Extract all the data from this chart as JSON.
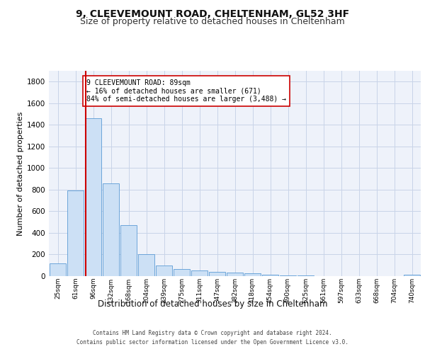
{
  "title_line1": "9, CLEEVEMOUNT ROAD, CHELTENHAM, GL52 3HF",
  "title_line2": "Size of property relative to detached houses in Cheltenham",
  "xlabel": "Distribution of detached houses by size in Cheltenham",
  "ylabel": "Number of detached properties",
  "footer_line1": "Contains HM Land Registry data © Crown copyright and database right 2024.",
  "footer_line2": "Contains public sector information licensed under the Open Government Licence v3.0.",
  "categories": [
    "25sqm",
    "61sqm",
    "96sqm",
    "132sqm",
    "168sqm",
    "204sqm",
    "239sqm",
    "275sqm",
    "311sqm",
    "347sqm",
    "382sqm",
    "418sqm",
    "454sqm",
    "490sqm",
    "525sqm",
    "561sqm",
    "597sqm",
    "633sqm",
    "668sqm",
    "704sqm",
    "740sqm"
  ],
  "values": [
    120,
    795,
    1460,
    860,
    470,
    200,
    100,
    65,
    55,
    40,
    30,
    25,
    15,
    8,
    5,
    3,
    2,
    1,
    1,
    0,
    15
  ],
  "bar_color": "#cce0f5",
  "bar_edge_color": "#5b9bd5",
  "property_line_x": 1.57,
  "property_line_color": "#cc0000",
  "annotation_text": "9 CLEEVEMOUNT ROAD: 89sqm\n← 16% of detached houses are smaller (671)\n84% of semi-detached houses are larger (3,488) →",
  "annotation_box_color": "#ffffff",
  "annotation_box_edge": "#cc0000",
  "ylim": [
    0,
    1900
  ],
  "yticks": [
    0,
    200,
    400,
    600,
    800,
    1000,
    1200,
    1400,
    1600,
    1800
  ],
  "grid_color": "#c8d4e8",
  "bg_color": "#eef2fa",
  "title1_fontsize": 10,
  "title2_fontsize": 9,
  "xlabel_fontsize": 8.5,
  "ylabel_fontsize": 8
}
